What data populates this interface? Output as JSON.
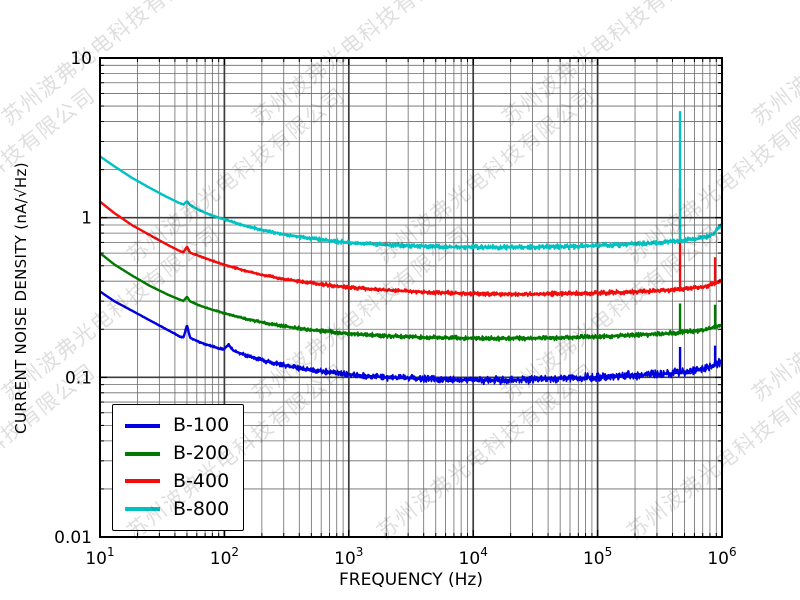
{
  "watermark": {
    "text": "苏州波弗光电科技有限公司"
  },
  "chart_data": {
    "type": "line",
    "title": "",
    "xlabel": "FREQUENCY (Hz)",
    "ylabel": "CURRENT NOISE DENSITY (nA/√Hz)",
    "xscale": "log",
    "yscale": "log",
    "xlim": [
      10,
      1000000
    ],
    "ylim": [
      0.01,
      10
    ],
    "x_tick_exponents": [
      1,
      2,
      3,
      4,
      5,
      6
    ],
    "y_ticks": [
      {
        "value": 10,
        "label": "10"
      },
      {
        "value": 1,
        "label": "1"
      },
      {
        "value": 0.1,
        "label": "0.1"
      },
      {
        "value": 0.01,
        "label": "0.01"
      }
    ],
    "grid": "major+minor",
    "legend_position": "lower left",
    "series": [
      {
        "name": "B-100",
        "color": "#0000e0",
        "noise_amp": 0.023,
        "points": [
          [
            10,
            0.345
          ],
          [
            13,
            0.3
          ],
          [
            18,
            0.262
          ],
          [
            25,
            0.228
          ],
          [
            35,
            0.198
          ],
          [
            44,
            0.18
          ],
          [
            47,
            0.178
          ],
          [
            50,
            0.213
          ],
          [
            53,
            0.177
          ],
          [
            62,
            0.167
          ],
          [
            80,
            0.156
          ],
          [
            98,
            0.149
          ],
          [
            108,
            0.16
          ],
          [
            118,
            0.147
          ],
          [
            150,
            0.137
          ],
          [
            200,
            0.128
          ],
          [
            300,
            0.119
          ],
          [
            500,
            0.111
          ],
          [
            800,
            0.106
          ],
          [
            1200,
            0.103
          ],
          [
            2000,
            0.1
          ],
          [
            4000,
            0.098
          ],
          [
            8000,
            0.0965
          ],
          [
            15000,
            0.096
          ],
          [
            30000,
            0.097
          ],
          [
            60000,
            0.099
          ],
          [
            100000,
            0.1
          ],
          [
            200000,
            0.103
          ],
          [
            400000,
            0.106
          ],
          [
            700000,
            0.112
          ],
          [
            1000000,
            0.125
          ]
        ],
        "spikes": [
          [
            460000,
            0.155
          ],
          [
            880000,
            0.158
          ]
        ]
      },
      {
        "name": "B-200",
        "color": "#007a00",
        "noise_amp": 0.016,
        "points": [
          [
            10,
            0.6
          ],
          [
            13,
            0.51
          ],
          [
            18,
            0.435
          ],
          [
            25,
            0.375
          ],
          [
            35,
            0.33
          ],
          [
            44,
            0.306
          ],
          [
            47,
            0.301
          ],
          [
            50,
            0.32
          ],
          [
            53,
            0.299
          ],
          [
            62,
            0.283
          ],
          [
            80,
            0.265
          ],
          [
            100,
            0.252
          ],
          [
            150,
            0.232
          ],
          [
            200,
            0.221
          ],
          [
            300,
            0.209
          ],
          [
            500,
            0.198
          ],
          [
            800,
            0.191
          ],
          [
            1200,
            0.186
          ],
          [
            2000,
            0.182
          ],
          [
            4000,
            0.178
          ],
          [
            8000,
            0.176
          ],
          [
            15000,
            0.175
          ],
          [
            30000,
            0.176
          ],
          [
            60000,
            0.178
          ],
          [
            100000,
            0.18
          ],
          [
            200000,
            0.184
          ],
          [
            400000,
            0.189
          ],
          [
            700000,
            0.197
          ],
          [
            1000000,
            0.212
          ]
        ],
        "spikes": [
          [
            460000,
            0.29
          ],
          [
            880000,
            0.285
          ]
        ]
      },
      {
        "name": "B-400",
        "color": "#f20d0d",
        "noise_amp": 0.016,
        "points": [
          [
            10,
            1.26
          ],
          [
            13,
            1.07
          ],
          [
            18,
            0.9
          ],
          [
            25,
            0.78
          ],
          [
            35,
            0.675
          ],
          [
            44,
            0.617
          ],
          [
            47,
            0.607
          ],
          [
            50,
            0.66
          ],
          [
            53,
            0.603
          ],
          [
            62,
            0.578
          ],
          [
            80,
            0.537
          ],
          [
            100,
            0.507
          ],
          [
            150,
            0.463
          ],
          [
            200,
            0.438
          ],
          [
            300,
            0.413
          ],
          [
            500,
            0.39
          ],
          [
            800,
            0.373
          ],
          [
            1200,
            0.362
          ],
          [
            2000,
            0.352
          ],
          [
            4000,
            0.342
          ],
          [
            8000,
            0.336
          ],
          [
            15000,
            0.332
          ],
          [
            30000,
            0.332
          ],
          [
            60000,
            0.334
          ],
          [
            100000,
            0.337
          ],
          [
            200000,
            0.343
          ],
          [
            400000,
            0.352
          ],
          [
            700000,
            0.368
          ],
          [
            1000000,
            0.405
          ]
        ],
        "spikes": [
          [
            460000,
            1.53
          ],
          [
            880000,
            0.565
          ]
        ]
      },
      {
        "name": "B-800",
        "color": "#00c2c2",
        "noise_amp": 0.017,
        "points": [
          [
            10,
            2.42
          ],
          [
            13,
            2.1
          ],
          [
            18,
            1.78
          ],
          [
            25,
            1.54
          ],
          [
            35,
            1.34
          ],
          [
            44,
            1.23
          ],
          [
            47,
            1.21
          ],
          [
            50,
            1.27
          ],
          [
            53,
            1.2
          ],
          [
            62,
            1.12
          ],
          [
            80,
            1.03
          ],
          [
            100,
            0.975
          ],
          [
            150,
            0.885
          ],
          [
            200,
            0.838
          ],
          [
            300,
            0.785
          ],
          [
            500,
            0.74
          ],
          [
            800,
            0.71
          ],
          [
            1200,
            0.692
          ],
          [
            2000,
            0.676
          ],
          [
            4000,
            0.662
          ],
          [
            8000,
            0.654
          ],
          [
            15000,
            0.651
          ],
          [
            30000,
            0.654
          ],
          [
            60000,
            0.66
          ],
          [
            100000,
            0.668
          ],
          [
            200000,
            0.684
          ],
          [
            400000,
            0.708
          ],
          [
            700000,
            0.746
          ],
          [
            850000,
            0.79
          ],
          [
            1000000,
            0.915
          ]
        ],
        "spikes": [
          [
            460000,
            4.65
          ]
        ]
      }
    ]
  },
  "colors": {
    "grid_major": "#3c3c3c",
    "grid_minor": "#6a6a6a",
    "axis": "#000000"
  }
}
